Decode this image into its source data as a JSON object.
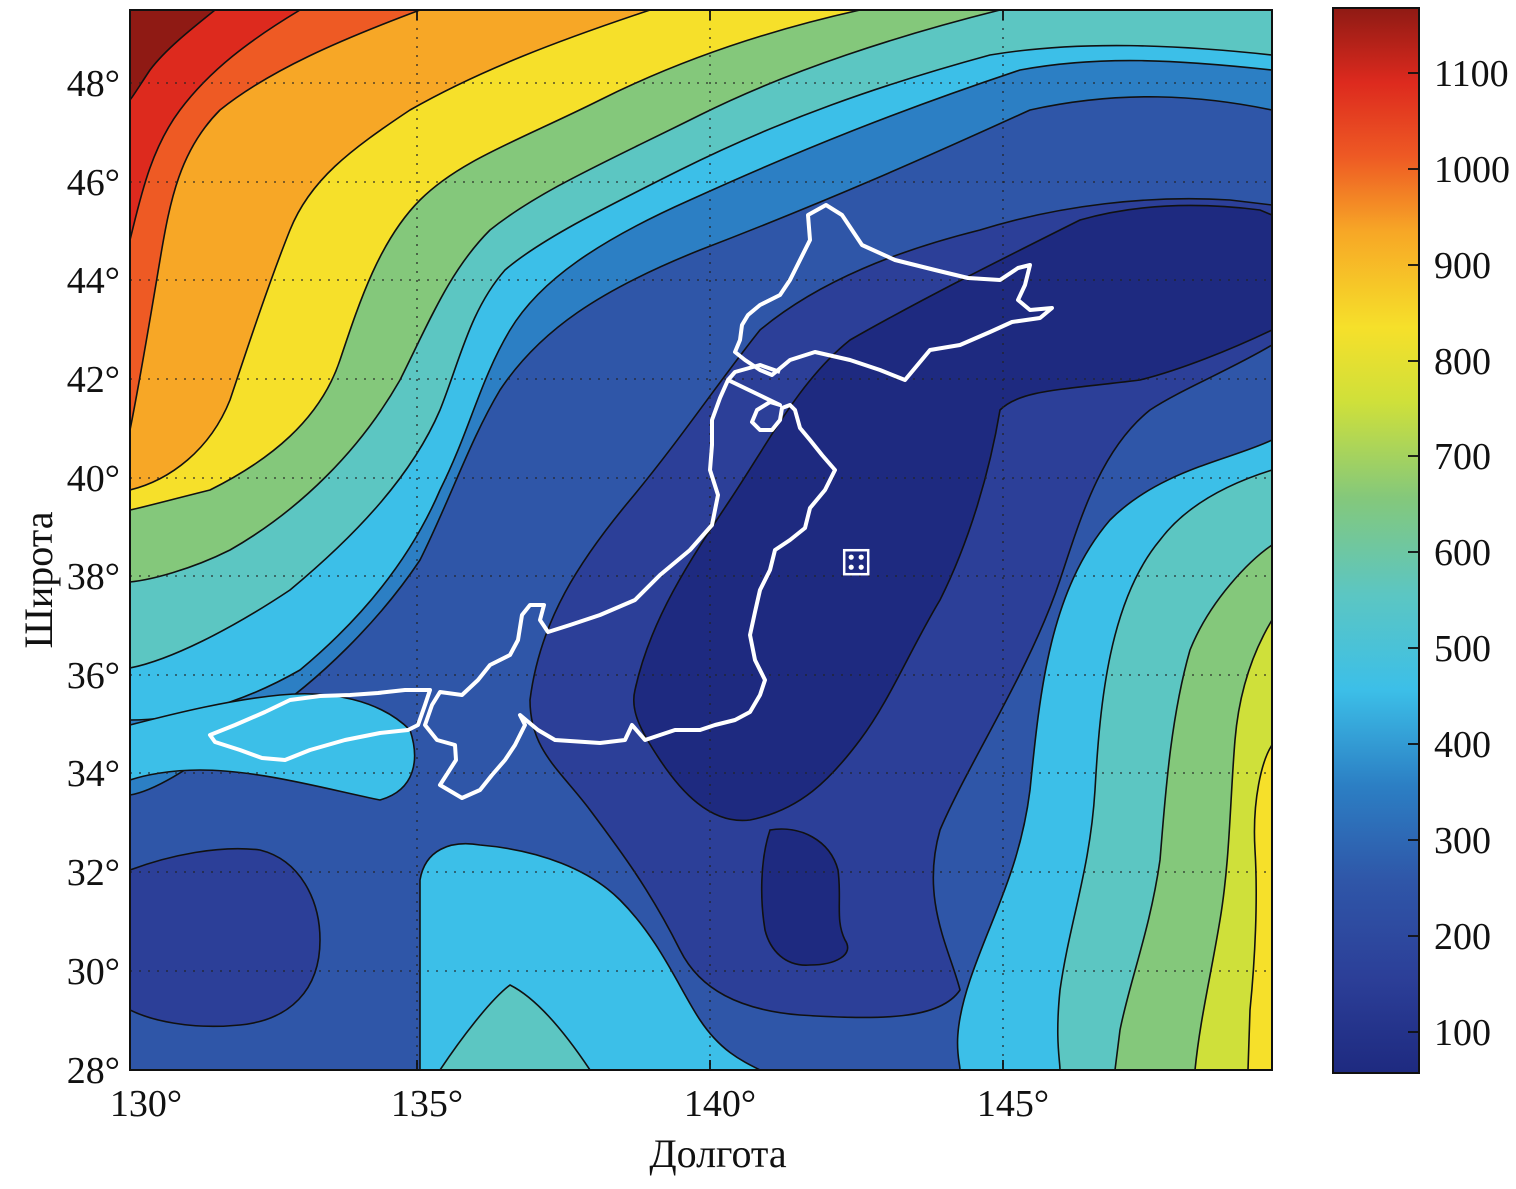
{
  "map": {
    "type": "contour-map",
    "xlabel": "Долгота",
    "ylabel": "Широта",
    "lon_range": [
      130,
      149.5
    ],
    "lat_range": [
      28,
      49.5
    ],
    "x_ticks": [
      {
        "value": 130,
        "label": "130°"
      },
      {
        "value": 135,
        "label": "135°"
      },
      {
        "value": 140,
        "label": "140°"
      },
      {
        "value": 145,
        "label": "145°"
      }
    ],
    "y_ticks": [
      {
        "value": 28,
        "label": "28°"
      },
      {
        "value": 30,
        "label": "30°"
      },
      {
        "value": 32,
        "label": "32°"
      },
      {
        "value": 34,
        "label": "34°"
      },
      {
        "value": 36,
        "label": "36°"
      },
      {
        "value": 38,
        "label": "38°"
      },
      {
        "value": 40,
        "label": "40°"
      },
      {
        "value": 42,
        "label": "42°"
      },
      {
        "value": 44,
        "label": "44°"
      },
      {
        "value": 46,
        "label": "46°"
      },
      {
        "value": 48,
        "label": "48°"
      }
    ],
    "grid": true,
    "coastline_color": "#ffffff",
    "marker": {
      "lon": 142.4,
      "lat": 38.3,
      "symbol": "square-target"
    }
  },
  "colorbar": {
    "range": [
      55,
      1165
    ],
    "ticks": [
      {
        "value": 100,
        "label": "100"
      },
      {
        "value": 200,
        "label": "200"
      },
      {
        "value": 300,
        "label": "300"
      },
      {
        "value": 400,
        "label": "400"
      },
      {
        "value": 500,
        "label": "500"
      },
      {
        "value": 600,
        "label": "600"
      },
      {
        "value": 700,
        "label": "700"
      },
      {
        "value": 800,
        "label": "800"
      },
      {
        "value": 900,
        "label": "900"
      },
      {
        "value": 1000,
        "label": "1000"
      },
      {
        "value": 1100,
        "label": "1100"
      }
    ],
    "colors": [
      "#1e2a80",
      "#2f56a8",
      "#2c7fc4",
      "#3cbfe8",
      "#5cc6c2",
      "#84c87b",
      "#cfe03a",
      "#f6e02a",
      "#f7a726",
      "#ee5a24",
      "#dd2a1e",
      "#8f1a14"
    ]
  }
}
